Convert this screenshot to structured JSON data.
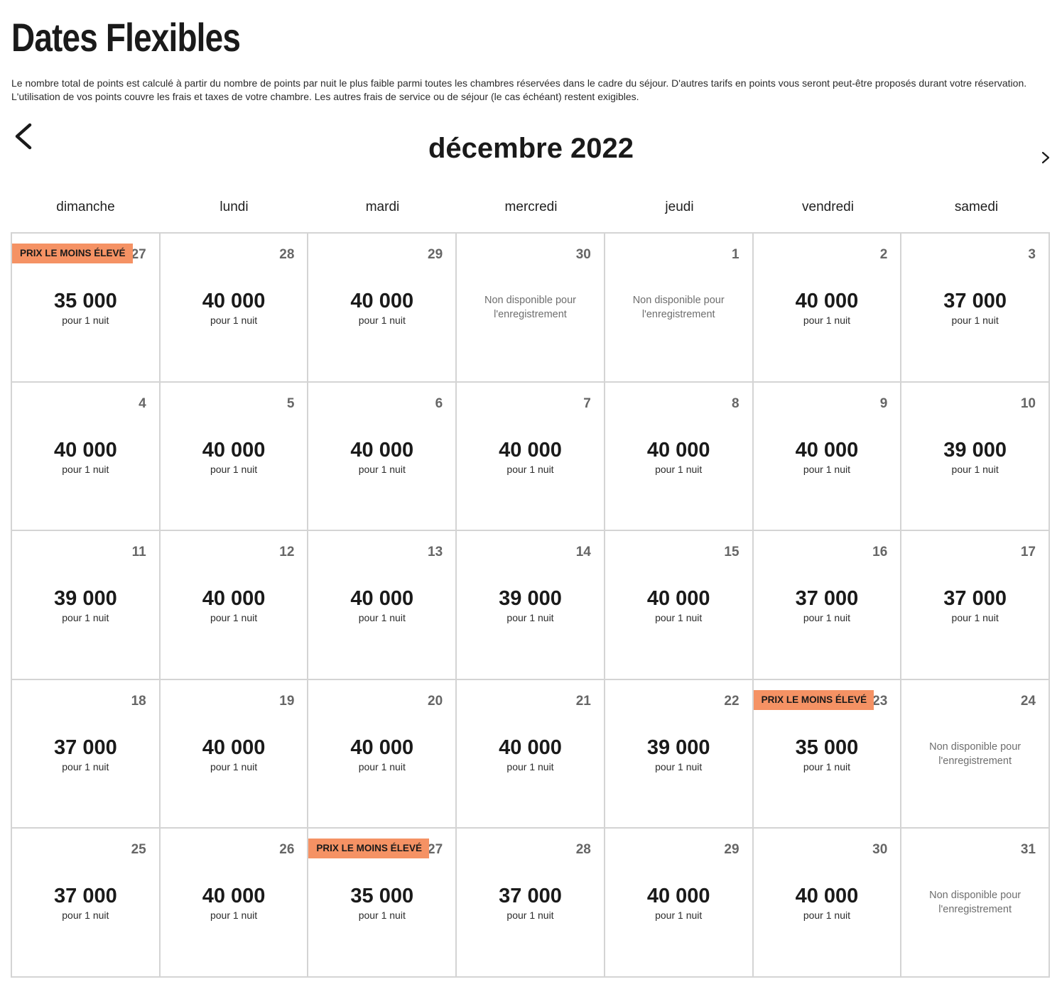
{
  "page": {
    "title": "Dates Flexibles",
    "disclaimer": "Le nombre total de points est calculé à partir du nombre de points par nuit le plus faible parmi toutes les chambres réservées dans le cadre du séjour. D'autres tarifs en points vous seront peut-être proposés durant votre réservation. L'utilisation de vos points couvre les frais et taxes de votre chambre. Les autres frais de service ou de séjour (le cas échéant) restent exigibles."
  },
  "calendar": {
    "month_label": "décembre 2022",
    "nav": {
      "prev_icon": "chevron-left-icon",
      "next_icon": "chevron-right-icon"
    },
    "weekdays": [
      "dimanche",
      "lundi",
      "mardi",
      "mercredi",
      "jeudi",
      "vendredi",
      "samedi"
    ],
    "per_night_label": "pour 1 nuit",
    "unavailable_label": "Non disponible pour l'enregistrement",
    "lowest_price_badge": "PRIX LE MOINS ÉLEVÉ",
    "badge_color": "#f59264",
    "days": [
      {
        "day": "27",
        "price": "35 000",
        "lowest": true
      },
      {
        "day": "28",
        "price": "40 000"
      },
      {
        "day": "29",
        "price": "40 000"
      },
      {
        "day": "30",
        "unavailable": true
      },
      {
        "day": "1",
        "unavailable": true
      },
      {
        "day": "2",
        "price": "40 000"
      },
      {
        "day": "3",
        "price": "37 000"
      },
      {
        "day": "4",
        "price": "40 000"
      },
      {
        "day": "5",
        "price": "40 000"
      },
      {
        "day": "6",
        "price": "40 000"
      },
      {
        "day": "7",
        "price": "40 000"
      },
      {
        "day": "8",
        "price": "40 000"
      },
      {
        "day": "9",
        "price": "40 000"
      },
      {
        "day": "10",
        "price": "39 000"
      },
      {
        "day": "11",
        "price": "39 000"
      },
      {
        "day": "12",
        "price": "40 000"
      },
      {
        "day": "13",
        "price": "40 000"
      },
      {
        "day": "14",
        "price": "39 000"
      },
      {
        "day": "15",
        "price": "40 000"
      },
      {
        "day": "16",
        "price": "37 000"
      },
      {
        "day": "17",
        "price": "37 000"
      },
      {
        "day": "18",
        "price": "37 000"
      },
      {
        "day": "19",
        "price": "40 000"
      },
      {
        "day": "20",
        "price": "40 000"
      },
      {
        "day": "21",
        "price": "40 000"
      },
      {
        "day": "22",
        "price": "39 000"
      },
      {
        "day": "23",
        "price": "35 000",
        "lowest": true
      },
      {
        "day": "24",
        "unavailable": true
      },
      {
        "day": "25",
        "price": "37 000"
      },
      {
        "day": "26",
        "price": "40 000"
      },
      {
        "day": "27",
        "price": "35 000",
        "lowest": true
      },
      {
        "day": "28",
        "price": "37 000"
      },
      {
        "day": "29",
        "price": "40 000"
      },
      {
        "day": "30",
        "price": "40 000"
      },
      {
        "day": "31",
        "unavailable": true
      }
    ]
  }
}
